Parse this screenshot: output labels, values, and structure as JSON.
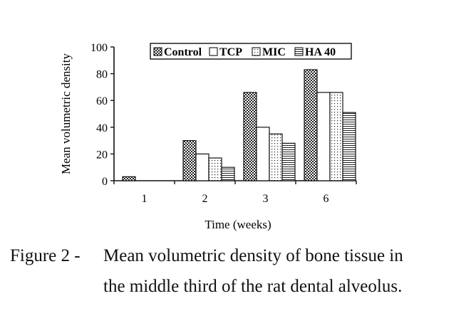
{
  "chart_data": {
    "type": "bar",
    "xlabel": "Time (weeks)",
    "ylabel": "Mean volumetric density",
    "ylim": [
      0,
      100
    ],
    "yticks": [
      0,
      20,
      40,
      60,
      80,
      100
    ],
    "categories": [
      "1",
      "2",
      "3",
      "6"
    ],
    "series": [
      {
        "name": "Control",
        "values": [
          3,
          30,
          66,
          83
        ]
      },
      {
        "name": "TCP",
        "values": [
          0,
          20,
          40,
          66
        ]
      },
      {
        "name": "MIC",
        "values": [
          0,
          17,
          35,
          66
        ]
      },
      {
        "name": "HA 40",
        "values": [
          0,
          10,
          28,
          51
        ]
      }
    ],
    "legend_position": "top",
    "grid": false
  },
  "figure_caption": {
    "label": "Figure 2 -",
    "line1": "Mean volumetric density of bone tissue in",
    "line2": "the middle third of the rat dental alveolus."
  }
}
